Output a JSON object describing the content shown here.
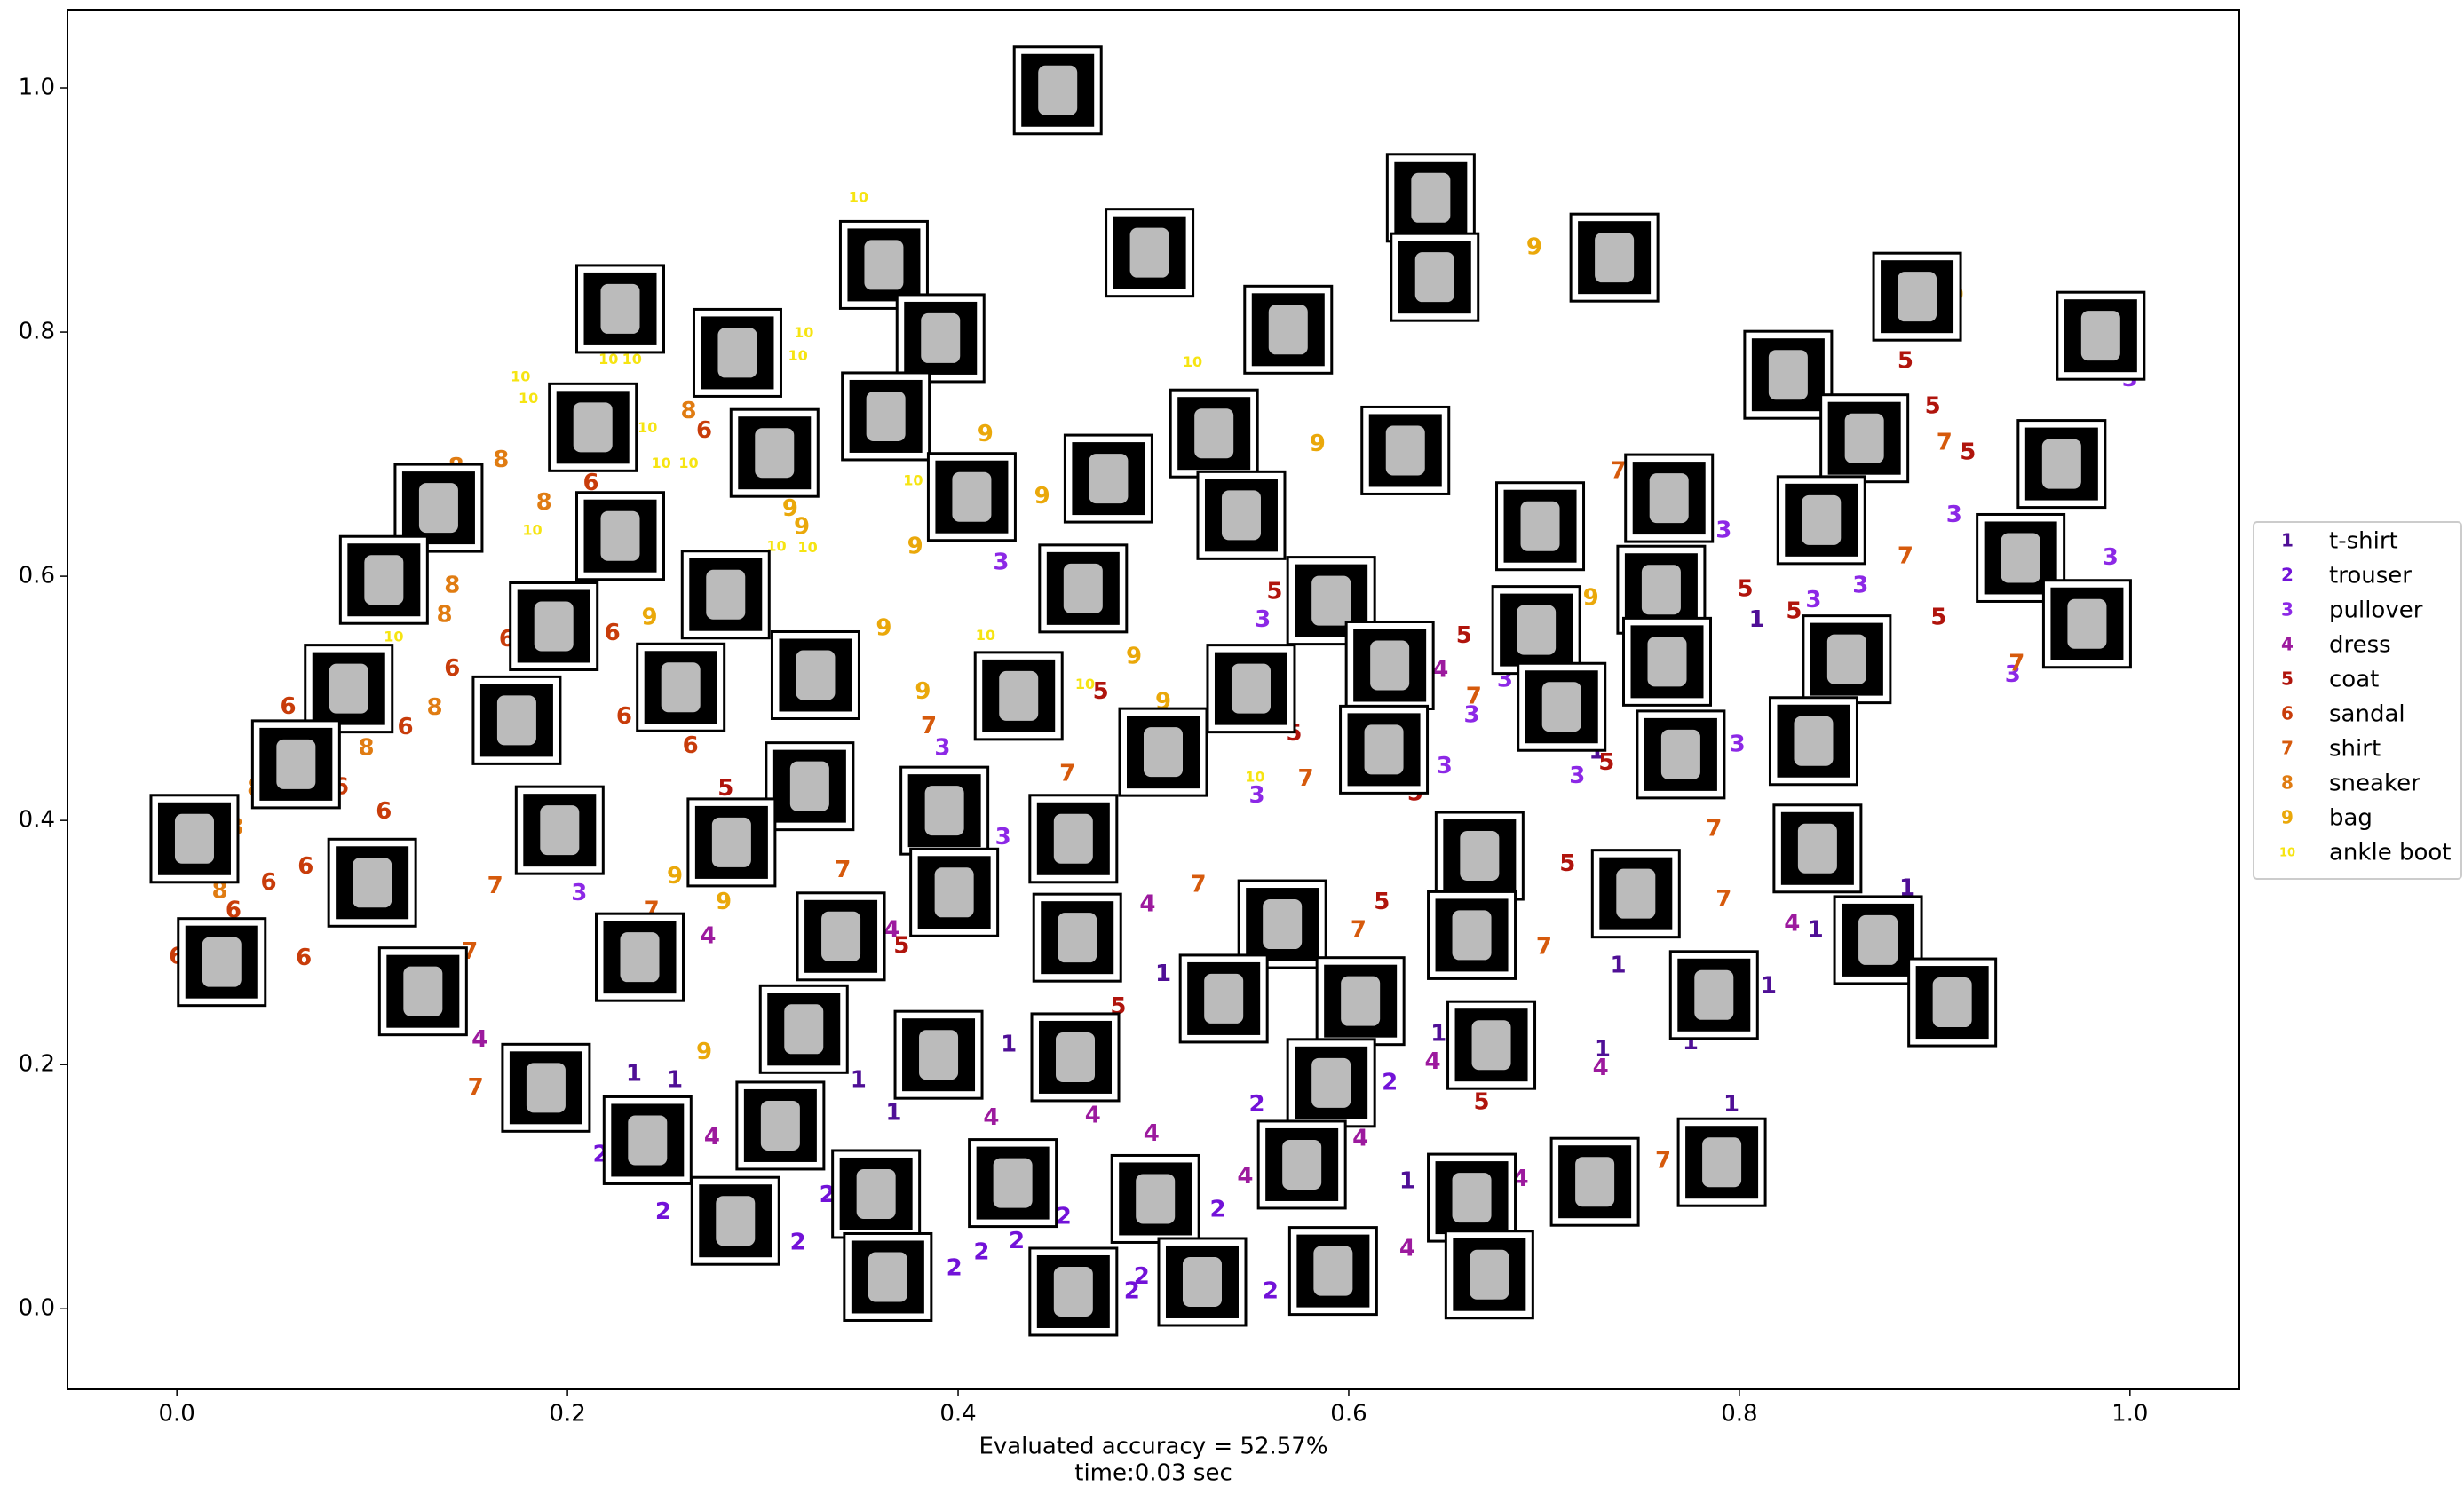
{
  "chart_data": {
    "type": "scatter",
    "xlabel": [
      "Evaluated accuracy = 52.57%",
      "time:0.03 sec"
    ],
    "xlim": [
      -0.056,
      1.056
    ],
    "ylim": [
      -0.066,
      1.064
    ],
    "xticks": [
      {
        "value": 0,
        "label": "0.0"
      },
      0.2,
      0.4,
      0.6,
      0.8,
      {
        "value": 1,
        "label": "1.0"
      }
    ],
    "yticks": [
      {
        "value": 0,
        "label": "0.0"
      },
      0.2,
      0.4,
      0.6,
      0.8,
      {
        "value": 1,
        "label": "1.0"
      }
    ],
    "legend": "right",
    "series": [
      {
        "name": "t-shirt",
        "marker": "1",
        "color": "#4f0f96",
        "x": [
          0.796,
          0.886,
          0.815,
          0.738,
          0.73,
          0.775,
          0.234,
          0.255,
          0.349,
          0.367,
          0.426,
          0.505,
          0.63,
          0.646,
          0.809,
          0.727,
          0.839
        ],
        "values": [
          0.167,
          0.344,
          0.264,
          0.281,
          0.212,
          0.218,
          0.192,
          0.187,
          0.187,
          0.16,
          0.216,
          0.274,
          0.104,
          0.225,
          0.564,
          0.456,
          0.31
        ]
      },
      {
        "name": "trouser",
        "marker": "2",
        "color": "#7212d8",
        "x": [
          0.249,
          0.318,
          0.398,
          0.454,
          0.489,
          0.533,
          0.56,
          0.553,
          0.621,
          0.412,
          0.333,
          0.217,
          0.43,
          0.494
        ],
        "values": [
          0.079,
          0.054,
          0.033,
          0.075,
          0.014,
          0.081,
          0.014,
          0.167,
          0.185,
          0.046,
          0.093,
          0.126,
          0.055,
          0.026
        ]
      },
      {
        "name": "pullover",
        "marker": "3",
        "color": "#8c28e6",
        "x": [
          0.422,
          0.556,
          0.663,
          0.649,
          0.717,
          0.799,
          0.838,
          0.862,
          0.91,
          0.99,
          0.94,
          0.792,
          0.553,
          0.206,
          0.423,
          0.392,
          1.0,
          0.68
        ],
        "values": [
          0.611,
          0.564,
          0.486,
          0.444,
          0.436,
          0.462,
          0.58,
          0.592,
          0.65,
          0.615,
          0.519,
          0.637,
          0.42,
          0.34,
          0.386,
          0.459,
          0.761,
          0.515
        ]
      },
      {
        "name": "dress",
        "marker": "4",
        "color": "#9c1a9e",
        "x": [
          0.272,
          0.155,
          0.274,
          0.417,
          0.469,
          0.499,
          0.547,
          0.606,
          0.63,
          0.688,
          0.729,
          0.643,
          0.497,
          0.366,
          0.827,
          0.647
        ],
        "values": [
          0.305,
          0.22,
          0.14,
          0.156,
          0.158,
          0.143,
          0.108,
          0.139,
          0.049,
          0.106,
          0.197,
          0.202,
          0.331,
          0.31,
          0.315,
          0.523
        ]
      },
      {
        "name": "coat",
        "marker": "5",
        "color": "#b0140c",
        "x": [
          0.281,
          0.371,
          0.473,
          0.572,
          0.617,
          0.712,
          0.634,
          0.659,
          0.732,
          0.803,
          0.828,
          0.885,
          0.899,
          0.902,
          0.668,
          0.917,
          0.482,
          0.562
        ],
        "values": [
          0.426,
          0.297,
          0.505,
          0.471,
          0.333,
          0.364,
          0.422,
          0.551,
          0.447,
          0.589,
          0.571,
          0.776,
          0.739,
          0.566,
          0.169,
          0.701,
          0.247,
          0.587
        ]
      },
      {
        "name": "sandal",
        "marker": "6",
        "color": "#c83c0a",
        "x": [
          0.27,
          0.212,
          0.223,
          0.169,
          0.141,
          0.117,
          0.106,
          0.066,
          0.047,
          0.029,
          0.065,
          0.0,
          0.263,
          0.229,
          0.057,
          0.084
        ],
        "values": [
          0.719,
          0.676,
          0.553,
          0.548,
          0.524,
          0.476,
          0.407,
          0.362,
          0.349,
          0.326,
          0.287,
          0.288,
          0.461,
          0.485,
          0.493,
          0.427
        ]
      },
      {
        "name": "shirt",
        "marker": "7",
        "color": "#d65a0c",
        "x": [
          0.163,
          0.153,
          0.15,
          0.243,
          0.341,
          0.385,
          0.456,
          0.523,
          0.578,
          0.605,
          0.7,
          0.738,
          0.787,
          0.792,
          0.885,
          0.905,
          0.942,
          0.761,
          0.664
        ],
        "values": [
          0.346,
          0.181,
          0.292,
          0.326,
          0.359,
          0.477,
          0.438,
          0.347,
          0.434,
          0.31,
          0.296,
          0.686,
          0.393,
          0.335,
          0.616,
          0.709,
          0.528,
          0.121,
          0.501
        ]
      },
      {
        "name": "sneaker",
        "marker": "8",
        "color": "#e07c12",
        "x": [
          0.166,
          0.188,
          0.141,
          0.137,
          0.132,
          0.097,
          0.04,
          0.022,
          0.262,
          0.143,
          0.03
        ],
        "values": [
          0.695,
          0.66,
          0.592,
          0.568,
          0.492,
          0.459,
          0.426,
          0.342,
          0.735,
          0.689,
          0.394
        ]
      },
      {
        "name": "bag",
        "marker": "9",
        "color": "#eaa80a",
        "x": [
          0.695,
          0.584,
          0.414,
          0.443,
          0.378,
          0.362,
          0.382,
          0.49,
          0.505,
          0.28,
          0.255,
          0.242,
          0.314,
          0.724,
          0.911,
          0.27,
          0.32
        ],
        "values": [
          0.869,
          0.708,
          0.716,
          0.665,
          0.624,
          0.557,
          0.505,
          0.534,
          0.497,
          0.333,
          0.354,
          0.566,
          0.655,
          0.582,
          0.83,
          0.21,
          0.64
        ]
      },
      {
        "name": "ankle boot",
        "marker": "10",
        "color": "#f6e412",
        "x": [
          0.349,
          0.176,
          0.18,
          0.221,
          0.233,
          0.241,
          0.248,
          0.262,
          0.182,
          0.321,
          0.318,
          0.377,
          0.307,
          0.323,
          0.414,
          0.52,
          0.552,
          0.465,
          0.111
        ],
        "values": [
          0.91,
          0.763,
          0.745,
          0.777,
          0.777,
          0.721,
          0.692,
          0.692,
          0.637,
          0.799,
          0.78,
          0.678,
          0.624,
          0.623,
          0.551,
          0.775,
          0.435,
          0.511,
          0.55
        ]
      }
    ],
    "thumbnails": {
      "x": [
        0.451,
        0.642,
        0.498,
        0.736,
        0.644,
        0.891,
        0.985,
        0.362,
        0.391,
        0.227,
        0.287,
        0.213,
        0.306,
        0.363,
        0.825,
        0.864,
        0.531,
        0.569,
        0.629,
        0.477,
        0.407,
        0.134,
        0.227,
        0.106,
        0.281,
        0.464,
        0.545,
        0.698,
        0.764,
        0.842,
        0.965,
        0.944,
        0.978,
        0.76,
        0.591,
        0.696,
        0.763,
        0.855,
        0.621,
        0.193,
        0.088,
        0.258,
        0.327,
        0.431,
        0.55,
        0.709,
        0.77,
        0.838,
        0.618,
        0.505,
        0.174,
        0.061,
        0.009,
        0.324,
        0.196,
        0.284,
        0.393,
        0.459,
        0.667,
        0.84,
        0.1,
        0.398,
        0.747,
        0.34,
        0.461,
        0.566,
        0.663,
        0.871,
        0.237,
        0.023,
        0.126,
        0.536,
        0.606,
        0.787,
        0.909,
        0.321,
        0.39,
        0.46,
        0.673,
        0.189,
        0.591,
        0.309,
        0.241,
        0.428,
        0.576,
        0.791,
        0.726,
        0.501,
        0.663,
        0.358,
        0.286,
        0.364,
        0.459,
        0.525,
        0.592,
        0.672
      ],
      "y": [
        0.998,
        0.91,
        0.865,
        0.861,
        0.845,
        0.829,
        0.797,
        0.855,
        0.795,
        0.819,
        0.783,
        0.722,
        0.701,
        0.731,
        0.765,
        0.713,
        0.717,
        0.802,
        0.703,
        0.68,
        0.665,
        0.656,
        0.633,
        0.597,
        0.585,
        0.59,
        0.65,
        0.641,
        0.664,
        0.646,
        0.692,
        0.615,
        0.561,
        0.589,
        0.58,
        0.556,
        0.53,
        0.532,
        0.527,
        0.559,
        0.508,
        0.509,
        0.519,
        0.502,
        0.508,
        0.493,
        0.454,
        0.465,
        0.458,
        0.456,
        0.482,
        0.446,
        0.385,
        0.428,
        0.392,
        0.382,
        0.408,
        0.385,
        0.371,
        0.377,
        0.349,
        0.341,
        0.34,
        0.305,
        0.304,
        0.315,
        0.306,
        0.302,
        0.288,
        0.284,
        0.26,
        0.254,
        0.252,
        0.257,
        0.251,
        0.229,
        0.208,
        0.206,
        0.216,
        0.181,
        0.185,
        0.15,
        0.138,
        0.103,
        0.118,
        0.12,
        0.104,
        0.09,
        0.091,
        0.094,
        0.072,
        0.026,
        0.014,
        0.022,
        0.031,
        0.028
      ]
    }
  }
}
